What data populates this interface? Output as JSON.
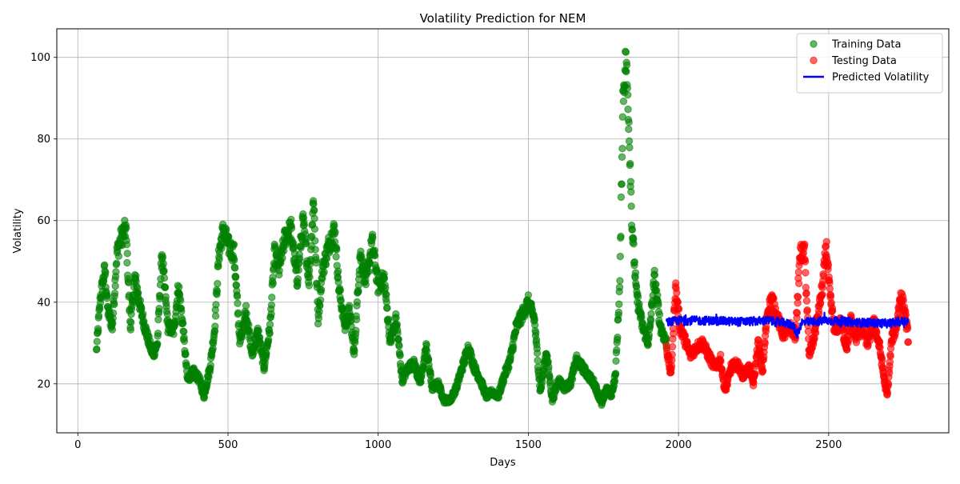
{
  "chart_data": {
    "type": "scatter",
    "title": "Volatility Prediction for NEM",
    "xlabel": "Days",
    "ylabel": "Volatility",
    "xlim": [
      -70,
      2900
    ],
    "ylim": [
      8,
      107
    ],
    "xticks": [
      0,
      500,
      1000,
      1500,
      2000,
      2500
    ],
    "yticks": [
      20,
      40,
      60,
      80,
      100
    ],
    "grid": true,
    "legend_position": "top-right",
    "series": [
      {
        "name": "Training Data",
        "kind": "scatter",
        "color": "#008000",
        "x_start": 62,
        "x_end": 1960,
        "anchors": [
          [
            62,
            28
          ],
          [
            75,
            41
          ],
          [
            90,
            48
          ],
          [
            100,
            38
          ],
          [
            115,
            34
          ],
          [
            130,
            52
          ],
          [
            145,
            56
          ],
          [
            160,
            58
          ],
          [
            175,
            34
          ],
          [
            190,
            46
          ],
          [
            210,
            38
          ],
          [
            230,
            32
          ],
          [
            250,
            27
          ],
          [
            265,
            30
          ],
          [
            280,
            52
          ],
          [
            300,
            34
          ],
          [
            320,
            33
          ],
          [
            335,
            44
          ],
          [
            350,
            34
          ],
          [
            365,
            21
          ],
          [
            385,
            23
          ],
          [
            405,
            21
          ],
          [
            420,
            17
          ],
          [
            440,
            24
          ],
          [
            455,
            33
          ],
          [
            470,
            52
          ],
          [
            485,
            58
          ],
          [
            500,
            54
          ],
          [
            520,
            52
          ],
          [
            540,
            30
          ],
          [
            560,
            38
          ],
          [
            580,
            27
          ],
          [
            600,
            33
          ],
          [
            620,
            24
          ],
          [
            640,
            34
          ],
          [
            655,
            52
          ],
          [
            670,
            48
          ],
          [
            690,
            56
          ],
          [
            710,
            58
          ],
          [
            730,
            45
          ],
          [
            750,
            60
          ],
          [
            770,
            45
          ],
          [
            785,
            66
          ],
          [
            800,
            36
          ],
          [
            815,
            48
          ],
          [
            835,
            54
          ],
          [
            855,
            58
          ],
          [
            870,
            43
          ],
          [
            890,
            34
          ],
          [
            905,
            38
          ],
          [
            920,
            27
          ],
          [
            940,
            52
          ],
          [
            960,
            45
          ],
          [
            980,
            55
          ],
          [
            1000,
            44
          ],
          [
            1020,
            46
          ],
          [
            1040,
            30
          ],
          [
            1060,
            36
          ],
          [
            1080,
            21
          ],
          [
            1100,
            24
          ],
          [
            1120,
            25
          ],
          [
            1140,
            20
          ],
          [
            1160,
            29
          ],
          [
            1180,
            19
          ],
          [
            1200,
            20
          ],
          [
            1220,
            16
          ],
          [
            1240,
            16
          ],
          [
            1260,
            19
          ],
          [
            1280,
            24
          ],
          [
            1300,
            29
          ],
          [
            1320,
            24
          ],
          [
            1340,
            21
          ],
          [
            1360,
            17
          ],
          [
            1380,
            18
          ],
          [
            1400,
            17
          ],
          [
            1420,
            22
          ],
          [
            1440,
            26
          ],
          [
            1460,
            34
          ],
          [
            1480,
            37
          ],
          [
            1500,
            40
          ],
          [
            1520,
            36
          ],
          [
            1540,
            18
          ],
          [
            1560,
            28
          ],
          [
            1580,
            16
          ],
          [
            1600,
            21
          ],
          [
            1620,
            19
          ],
          [
            1640,
            20
          ],
          [
            1660,
            26
          ],
          [
            1680,
            24
          ],
          [
            1700,
            22
          ],
          [
            1720,
            20
          ],
          [
            1745,
            15
          ],
          [
            1760,
            19
          ],
          [
            1775,
            17
          ],
          [
            1790,
            22
          ],
          [
            1805,
            45
          ],
          [
            1815,
            90
          ],
          [
            1825,
            100
          ],
          [
            1835,
            84
          ],
          [
            1845,
            59
          ],
          [
            1860,
            42
          ],
          [
            1880,
            34
          ],
          [
            1900,
            30
          ],
          [
            1920,
            46
          ],
          [
            1940,
            34
          ],
          [
            1960,
            30
          ]
        ]
      },
      {
        "name": "Testing Data",
        "kind": "scatter",
        "color": "#ff0000",
        "x_start": 1960,
        "x_end": 2765,
        "anchors": [
          [
            1960,
            29
          ],
          [
            1975,
            22
          ],
          [
            1990,
            44
          ],
          [
            2005,
            34
          ],
          [
            2020,
            31
          ],
          [
            2040,
            27
          ],
          [
            2060,
            29
          ],
          [
            2080,
            30
          ],
          [
            2100,
            27
          ],
          [
            2120,
            24
          ],
          [
            2140,
            26
          ],
          [
            2155,
            18
          ],
          [
            2175,
            24
          ],
          [
            2195,
            25
          ],
          [
            2215,
            22
          ],
          [
            2235,
            24
          ],
          [
            2250,
            20
          ],
          [
            2265,
            30
          ],
          [
            2280,
            23
          ],
          [
            2295,
            37
          ],
          [
            2310,
            41
          ],
          [
            2330,
            36
          ],
          [
            2350,
            32
          ],
          [
            2370,
            34
          ],
          [
            2390,
            32
          ],
          [
            2405,
            52
          ],
          [
            2420,
            52
          ],
          [
            2435,
            27
          ],
          [
            2450,
            31
          ],
          [
            2465,
            37
          ],
          [
            2480,
            44
          ],
          [
            2492,
            54
          ],
          [
            2505,
            41
          ],
          [
            2520,
            33
          ],
          [
            2540,
            35
          ],
          [
            2560,
            29
          ],
          [
            2575,
            36
          ],
          [
            2590,
            31
          ],
          [
            2610,
            34
          ],
          [
            2630,
            30
          ],
          [
            2650,
            35
          ],
          [
            2670,
            29
          ],
          [
            2685,
            21
          ],
          [
            2695,
            17
          ],
          [
            2710,
            31
          ],
          [
            2725,
            34
          ],
          [
            2740,
            42
          ],
          [
            2755,
            37
          ],
          [
            2765,
            31
          ]
        ]
      },
      {
        "name": "Predicted Volatility",
        "kind": "line",
        "color": "#0000ff",
        "x_start": 1960,
        "x_end": 2765,
        "mean": 35.3,
        "anchors": [
          [
            1960,
            35
          ],
          [
            2000,
            35.5
          ],
          [
            2100,
            35.5
          ],
          [
            2200,
            35.2
          ],
          [
            2300,
            35.5
          ],
          [
            2380,
            34.5
          ],
          [
            2395,
            32
          ],
          [
            2410,
            35
          ],
          [
            2500,
            35.5
          ],
          [
            2600,
            35
          ],
          [
            2700,
            34.8
          ],
          [
            2765,
            35.5
          ]
        ]
      }
    ]
  }
}
